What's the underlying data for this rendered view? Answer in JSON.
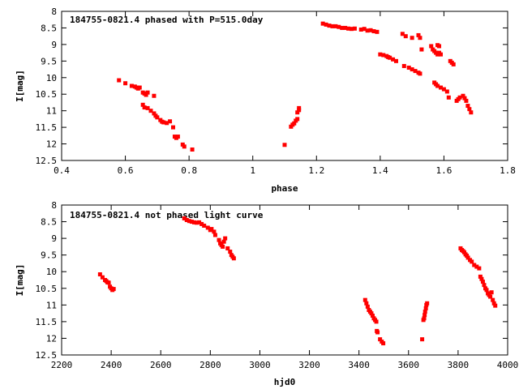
{
  "chart_data": [
    {
      "type": "scatter",
      "title": "184755-0821.4 phased with P=515.0day",
      "xlabel": "phase",
      "ylabel": "I[mag]",
      "xlim": [
        0.4,
        1.8
      ],
      "ylim": [
        12.5,
        8
      ],
      "y_inverted": true,
      "grid": false,
      "legend": "none",
      "marker_color": "#ff0000",
      "x_ticks": [
        "0.4",
        "0.6",
        "0.8",
        "1",
        "1.2",
        "1.4",
        "1.6",
        "1.8"
      ],
      "y_ticks": [
        "8",
        "8.5",
        "9",
        "9.5",
        "10",
        "10.5",
        "11",
        "11.5",
        "12",
        "12.5"
      ],
      "points": [
        [
          0.58,
          10.08
        ],
        [
          0.6,
          10.17
        ],
        [
          0.62,
          10.25
        ],
        [
          0.63,
          10.27
        ],
        [
          0.635,
          10.3
        ],
        [
          0.64,
          10.33
        ],
        [
          0.645,
          10.3
        ],
        [
          0.655,
          10.45
        ],
        [
          0.66,
          10.48
        ],
        [
          0.665,
          10.52
        ],
        [
          0.67,
          10.45
        ],
        [
          0.69,
          10.55
        ],
        [
          0.655,
          10.82
        ],
        [
          0.66,
          10.9
        ],
        [
          0.67,
          10.92
        ],
        [
          0.68,
          11.0
        ],
        [
          0.69,
          11.08
        ],
        [
          0.695,
          11.15
        ],
        [
          0.7,
          11.2
        ],
        [
          0.71,
          11.28
        ],
        [
          0.715,
          11.33
        ],
        [
          0.72,
          11.35
        ],
        [
          0.73,
          11.37
        ],
        [
          0.74,
          11.32
        ],
        [
          0.75,
          11.5
        ],
        [
          0.755,
          11.78
        ],
        [
          0.76,
          11.82
        ],
        [
          0.765,
          11.78
        ],
        [
          0.78,
          12.02
        ],
        [
          0.785,
          12.08
        ],
        [
          0.81,
          12.17
        ],
        [
          1.1,
          12.03
        ],
        [
          1.12,
          11.48
        ],
        [
          1.125,
          11.42
        ],
        [
          1.13,
          11.38
        ],
        [
          1.135,
          11.3
        ],
        [
          1.14,
          11.25
        ],
        [
          1.14,
          11.05
        ],
        [
          1.145,
          10.98
        ],
        [
          1.145,
          10.92
        ],
        [
          1.22,
          8.37
        ],
        [
          1.23,
          8.4
        ],
        [
          1.24,
          8.43
        ],
        [
          1.25,
          8.45
        ],
        [
          1.26,
          8.45
        ],
        [
          1.27,
          8.47
        ],
        [
          1.28,
          8.5
        ],
        [
          1.29,
          8.5
        ],
        [
          1.3,
          8.52
        ],
        [
          1.31,
          8.53
        ],
        [
          1.32,
          8.52
        ],
        [
          1.34,
          8.55
        ],
        [
          1.35,
          8.53
        ],
        [
          1.36,
          8.58
        ],
        [
          1.37,
          8.57
        ],
        [
          1.38,
          8.6
        ],
        [
          1.39,
          8.62
        ],
        [
          1.4,
          9.3
        ],
        [
          1.41,
          9.32
        ],
        [
          1.42,
          9.35
        ],
        [
          1.425,
          9.38
        ],
        [
          1.43,
          9.4
        ],
        [
          1.44,
          9.45
        ],
        [
          1.45,
          9.5
        ],
        [
          1.47,
          8.68
        ],
        [
          1.48,
          8.75
        ],
        [
          1.5,
          8.8
        ],
        [
          1.52,
          8.72
        ],
        [
          1.525,
          8.8
        ],
        [
          1.53,
          9.15
        ],
        [
          1.475,
          9.65
        ],
        [
          1.49,
          9.7
        ],
        [
          1.5,
          9.75
        ],
        [
          1.51,
          9.8
        ],
        [
          1.52,
          9.85
        ],
        [
          1.525,
          9.88
        ],
        [
          1.56,
          9.05
        ],
        [
          1.565,
          9.15
        ],
        [
          1.57,
          9.2
        ],
        [
          1.575,
          9.25
        ],
        [
          1.58,
          9.3
        ],
        [
          1.585,
          9.25
        ],
        [
          1.59,
          9.3
        ],
        [
          1.58,
          9.02
        ],
        [
          1.585,
          9.05
        ],
        [
          1.62,
          9.5
        ],
        [
          1.625,
          9.55
        ],
        [
          1.63,
          9.6
        ],
        [
          1.57,
          10.15
        ],
        [
          1.575,
          10.2
        ],
        [
          1.58,
          10.25
        ],
        [
          1.59,
          10.3
        ],
        [
          1.6,
          10.35
        ],
        [
          1.61,
          10.42
        ],
        [
          1.615,
          10.6
        ],
        [
          1.64,
          10.7
        ],
        [
          1.645,
          10.65
        ],
        [
          1.65,
          10.6
        ],
        [
          1.66,
          10.55
        ],
        [
          1.665,
          10.62
        ],
        [
          1.67,
          10.7
        ],
        [
          1.675,
          10.85
        ],
        [
          1.68,
          10.95
        ],
        [
          1.685,
          11.05
        ]
      ]
    },
    {
      "type": "scatter",
      "title": "184755-0821.4 not phased light curve",
      "xlabel": "hjd0",
      "ylabel": "I[mag]",
      "xlim": [
        2200,
        4000
      ],
      "ylim": [
        12.5,
        8
      ],
      "y_inverted": true,
      "grid": false,
      "legend": "none",
      "marker_color": "#ff0000",
      "x_ticks": [
        "2200",
        "2400",
        "2600",
        "2800",
        "3000",
        "3200",
        "3400",
        "3600",
        "3800",
        "4000"
      ],
      "y_ticks": [
        "8",
        "8.5",
        "9",
        "9.5",
        "10",
        "10.5",
        "11",
        "11.5",
        "12",
        "12.5"
      ],
      "points": [
        [
          2355,
          10.08
        ],
        [
          2365,
          10.17
        ],
        [
          2375,
          10.25
        ],
        [
          2380,
          10.28
        ],
        [
          2385,
          10.32
        ],
        [
          2390,
          10.33
        ],
        [
          2395,
          10.45
        ],
        [
          2400,
          10.5
        ],
        [
          2405,
          10.55
        ],
        [
          2410,
          10.52
        ],
        [
          2695,
          8.4
        ],
        [
          2705,
          8.45
        ],
        [
          2715,
          8.48
        ],
        [
          2725,
          8.5
        ],
        [
          2735,
          8.52
        ],
        [
          2745,
          8.53
        ],
        [
          2755,
          8.52
        ],
        [
          2765,
          8.57
        ],
        [
          2775,
          8.62
        ],
        [
          2790,
          8.68
        ],
        [
          2800,
          8.75
        ],
        [
          2805,
          8.72
        ],
        [
          2815,
          8.8
        ],
        [
          2820,
          8.9
        ],
        [
          2835,
          9.05
        ],
        [
          2840,
          9.15
        ],
        [
          2845,
          9.2
        ],
        [
          2850,
          9.25
        ],
        [
          2855,
          9.1
        ],
        [
          2860,
          9.0
        ],
        [
          2870,
          9.3
        ],
        [
          2880,
          9.4
        ],
        [
          2885,
          9.5
        ],
        [
          2890,
          9.55
        ],
        [
          2895,
          9.6
        ],
        [
          3425,
          10.85
        ],
        [
          3430,
          10.95
        ],
        [
          3435,
          11.05
        ],
        [
          3440,
          11.15
        ],
        [
          3445,
          11.2
        ],
        [
          3450,
          11.25
        ],
        [
          3455,
          11.32
        ],
        [
          3460,
          11.4
        ],
        [
          3465,
          11.45
        ],
        [
          3470,
          11.5
        ],
        [
          3472,
          11.78
        ],
        [
          3475,
          11.82
        ],
        [
          3485,
          12.03
        ],
        [
          3492,
          12.1
        ],
        [
          3498,
          12.15
        ],
        [
          3655,
          12.03
        ],
        [
          3660,
          11.45
        ],
        [
          3663,
          11.4
        ],
        [
          3665,
          11.3
        ],
        [
          3667,
          11.2
        ],
        [
          3670,
          11.1
        ],
        [
          3672,
          11.0
        ],
        [
          3675,
          10.95
        ],
        [
          3810,
          9.3
        ],
        [
          3815,
          9.35
        ],
        [
          3820,
          9.38
        ],
        [
          3825,
          9.42
        ],
        [
          3830,
          9.48
        ],
        [
          3835,
          9.52
        ],
        [
          3840,
          9.58
        ],
        [
          3848,
          9.65
        ],
        [
          3855,
          9.7
        ],
        [
          3865,
          9.8
        ],
        [
          3875,
          9.85
        ],
        [
          3885,
          9.9
        ],
        [
          3890,
          10.15
        ],
        [
          3895,
          10.22
        ],
        [
          3900,
          10.3
        ],
        [
          3905,
          10.4
        ],
        [
          3910,
          10.5
        ],
        [
          3915,
          10.55
        ],
        [
          3920,
          10.65
        ],
        [
          3925,
          10.7
        ],
        [
          3930,
          10.75
        ],
        [
          3935,
          10.62
        ],
        [
          3940,
          10.85
        ],
        [
          3945,
          10.95
        ],
        [
          3950,
          11.02
        ]
      ]
    }
  ]
}
